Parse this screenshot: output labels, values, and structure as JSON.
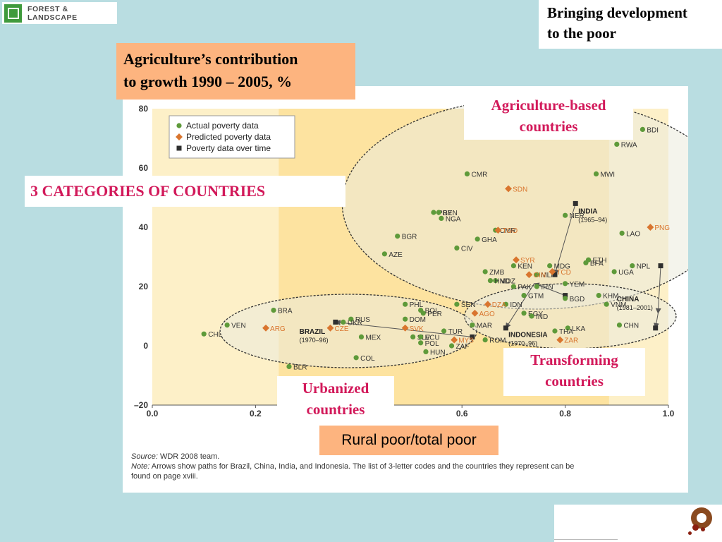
{
  "logo": {
    "text": "FOREST & LANDSCAPE"
  },
  "tagline": {
    "line1": "Bringing development",
    "line2": "to the poor"
  },
  "slide_title": {
    "line1": "Agriculture’s contribution",
    "line2": "to growth 1990 – 2005, %"
  },
  "categories_heading": "3 CATEGORIES OF COUNTRIES",
  "category_labels": {
    "agriculture_based": {
      "line1": "Agriculture-based",
      "line2": "countries"
    },
    "transforming": {
      "line1": "Transforming",
      "line2": "countries"
    },
    "urbanized": {
      "line1": "Urbanized",
      "line2": "countries"
    }
  },
  "xaxis_note": "Rural poor/total poor",
  "source": {
    "label": "Source:",
    "text": " WDR 2008 team."
  },
  "note": {
    "label": "Note:",
    "line1": " Arrows show paths for Brazil, China, India, and Indonesia. The list of 3-letter codes and the countries they represent can be",
    "line2": "found on page xviii."
  },
  "colors": {
    "actual": "#5e9a3a",
    "predicted": "#d9752e",
    "overtime": "#2f2f2f",
    "accent": "#d2195a",
    "orange_box": "#fdb47f"
  },
  "chart_data": {
    "type": "scatter",
    "xlim": [
      0.0,
      1.0
    ],
    "ylim": [
      -20,
      80
    ],
    "xticks": [
      "0.0",
      "0.2",
      "0.4",
      "0.6",
      "0.8",
      "1.0"
    ],
    "yticks": [
      "80",
      "60",
      "40",
      "20",
      "0",
      "–20"
    ],
    "grid": false,
    "legend_position": "top-left",
    "legend": [
      "Actual poverty data",
      "Predicted poverty data",
      "Poverty data over time"
    ],
    "series": [
      {
        "name": "Actual poverty data",
        "points": [
          {
            "label": "BDI",
            "x": 0.95,
            "y": 73
          },
          {
            "label": "RWA",
            "x": 0.9,
            "y": 68
          },
          {
            "label": "CMR",
            "x": 0.61,
            "y": 58
          },
          {
            "label": "MWI",
            "x": 0.86,
            "y": 58
          },
          {
            "label": "PRY",
            "x": 0.545,
            "y": 45
          },
          {
            "label": "BEN",
            "x": 0.555,
            "y": 45
          },
          {
            "label": "NGA",
            "x": 0.56,
            "y": 43
          },
          {
            "label": "NER",
            "x": 0.8,
            "y": 44
          },
          {
            "label": "LAO",
            "x": 0.91,
            "y": 38
          },
          {
            "label": "CMR",
            "x": 0.665,
            "y": 39
          },
          {
            "label": "BGR",
            "x": 0.475,
            "y": 37
          },
          {
            "label": "GHA",
            "x": 0.63,
            "y": 36
          },
          {
            "label": "CIV",
            "x": 0.59,
            "y": 33
          },
          {
            "label": "AZE",
            "x": 0.45,
            "y": 31
          },
          {
            "label": "MDG",
            "x": 0.77,
            "y": 27
          },
          {
            "label": "ETH",
            "x": 0.845,
            "y": 29
          },
          {
            "label": "BFA",
            "x": 0.84,
            "y": 28
          },
          {
            "label": "NPL",
            "x": 0.93,
            "y": 27
          },
          {
            "label": "KEN",
            "x": 0.7,
            "y": 27
          },
          {
            "label": "ZMB",
            "x": 0.645,
            "y": 25
          },
          {
            "label": "UGA",
            "x": 0.895,
            "y": 25
          },
          {
            "label": "MLI",
            "x": 0.745,
            "y": 24
          },
          {
            "label": "MOZ",
            "x": 0.665,
            "y": 22
          },
          {
            "label": "HND",
            "x": 0.655,
            "y": 22
          },
          {
            "label": "PAK",
            "x": 0.7,
            "y": 20
          },
          {
            "label": "IRN",
            "x": 0.745,
            "y": 20
          },
          {
            "label": "YEM",
            "x": 0.8,
            "y": 21
          },
          {
            "label": "KHM",
            "x": 0.865,
            "y": 17
          },
          {
            "label": "GTM",
            "x": 0.72,
            "y": 17
          },
          {
            "label": "SEN",
            "x": 0.59,
            "y": 14
          },
          {
            "label": "PHL",
            "x": 0.49,
            "y": 14
          },
          {
            "label": "BOL",
            "x": 0.52,
            "y": 12
          },
          {
            "label": "BGD",
            "x": 0.8,
            "y": 16
          },
          {
            "label": "IDN",
            "x": 0.685,
            "y": 14
          },
          {
            "label": "VNM",
            "x": 0.88,
            "y": 14
          },
          {
            "label": "BRA",
            "x": 0.235,
            "y": 12
          },
          {
            "label": "PER",
            "x": 0.525,
            "y": 11
          },
          {
            "label": "EGY",
            "x": 0.72,
            "y": 11
          },
          {
            "label": "IND",
            "x": 0.735,
            "y": 10
          },
          {
            "label": "DOM",
            "x": 0.49,
            "y": 9
          },
          {
            "label": "RUS",
            "x": 0.385,
            "y": 9
          },
          {
            "label": "UKR",
            "x": 0.37,
            "y": 8
          },
          {
            "label": "MAR",
            "x": 0.62,
            "y": 7
          },
          {
            "label": "VEN",
            "x": 0.145,
            "y": 7
          },
          {
            "label": "CHN",
            "x": 0.905,
            "y": 7
          },
          {
            "label": "LKA",
            "x": 0.805,
            "y": 6
          },
          {
            "label": "TUR",
            "x": 0.565,
            "y": 5
          },
          {
            "label": "THA",
            "x": 0.78,
            "y": 5
          },
          {
            "label": "CHL",
            "x": 0.1,
            "y": 4
          },
          {
            "label": "SLV",
            "x": 0.505,
            "y": 3
          },
          {
            "label": "ECU",
            "x": 0.52,
            "y": 3
          },
          {
            "label": "MEX",
            "x": 0.405,
            "y": 3
          },
          {
            "label": "POL",
            "x": 0.52,
            "y": 1
          },
          {
            "label": "ROM",
            "x": 0.645,
            "y": 2
          },
          {
            "label": "ZAF",
            "x": 0.58,
            "y": 0
          },
          {
            "label": "HUN",
            "x": 0.53,
            "y": -2
          },
          {
            "label": "COL",
            "x": 0.395,
            "y": -4
          },
          {
            "label": "BLR",
            "x": 0.265,
            "y": -7
          }
        ]
      },
      {
        "name": "Predicted poverty data",
        "points": [
          {
            "label": "SDN",
            "x": 0.69,
            "y": 53
          },
          {
            "label": "PNG",
            "x": 0.965,
            "y": 40
          },
          {
            "label": "TGO",
            "x": 0.67,
            "y": 39
          },
          {
            "label": "SYR",
            "x": 0.705,
            "y": 29
          },
          {
            "label": "GIN",
            "x": 0.73,
            "y": 24
          },
          {
            "label": "TCD",
            "x": 0.775,
            "y": 25
          },
          {
            "label": "DZA",
            "x": 0.65,
            "y": 14
          },
          {
            "label": "AGO",
            "x": 0.625,
            "y": 11
          },
          {
            "label": "ARG",
            "x": 0.22,
            "y": 6
          },
          {
            "label": "CZE",
            "x": 0.345,
            "y": 6
          },
          {
            "label": "SVK",
            "x": 0.49,
            "y": 6
          },
          {
            "label": "MYS",
            "x": 0.585,
            "y": 2
          },
          {
            "label": "ZAR",
            "x": 0.79,
            "y": 2
          }
        ]
      },
      {
        "name": "Poverty data over time",
        "paths": [
          {
            "label": "INDIA",
            "sublabel": "(1965–94)",
            "points": [
              {
                "x": 0.82,
                "y": 48
              },
              {
                "x": 0.78,
                "y": 24
              }
            ]
          },
          {
            "label": "CHINA",
            "sublabel": "(1981–2001)",
            "points": [
              {
                "x": 0.985,
                "y": 27
              },
              {
                "x": 0.98,
                "y": 11
              },
              {
                "x": 0.975,
                "y": 6
              }
            ]
          },
          {
            "label": "INDONESIA",
            "sublabel": "(1970–96)",
            "points": [
              {
                "x": 0.8,
                "y": 17
              },
              {
                "x": 0.74,
                "y": 21
              },
              {
                "x": 0.685,
                "y": 6
              }
            ]
          },
          {
            "label": "BRAZIL",
            "sublabel": "(1970–96)",
            "points": [
              {
                "x": 0.62,
                "y": 3
              },
              {
                "x": 0.355,
                "y": 8
              }
            ]
          }
        ]
      }
    ]
  }
}
